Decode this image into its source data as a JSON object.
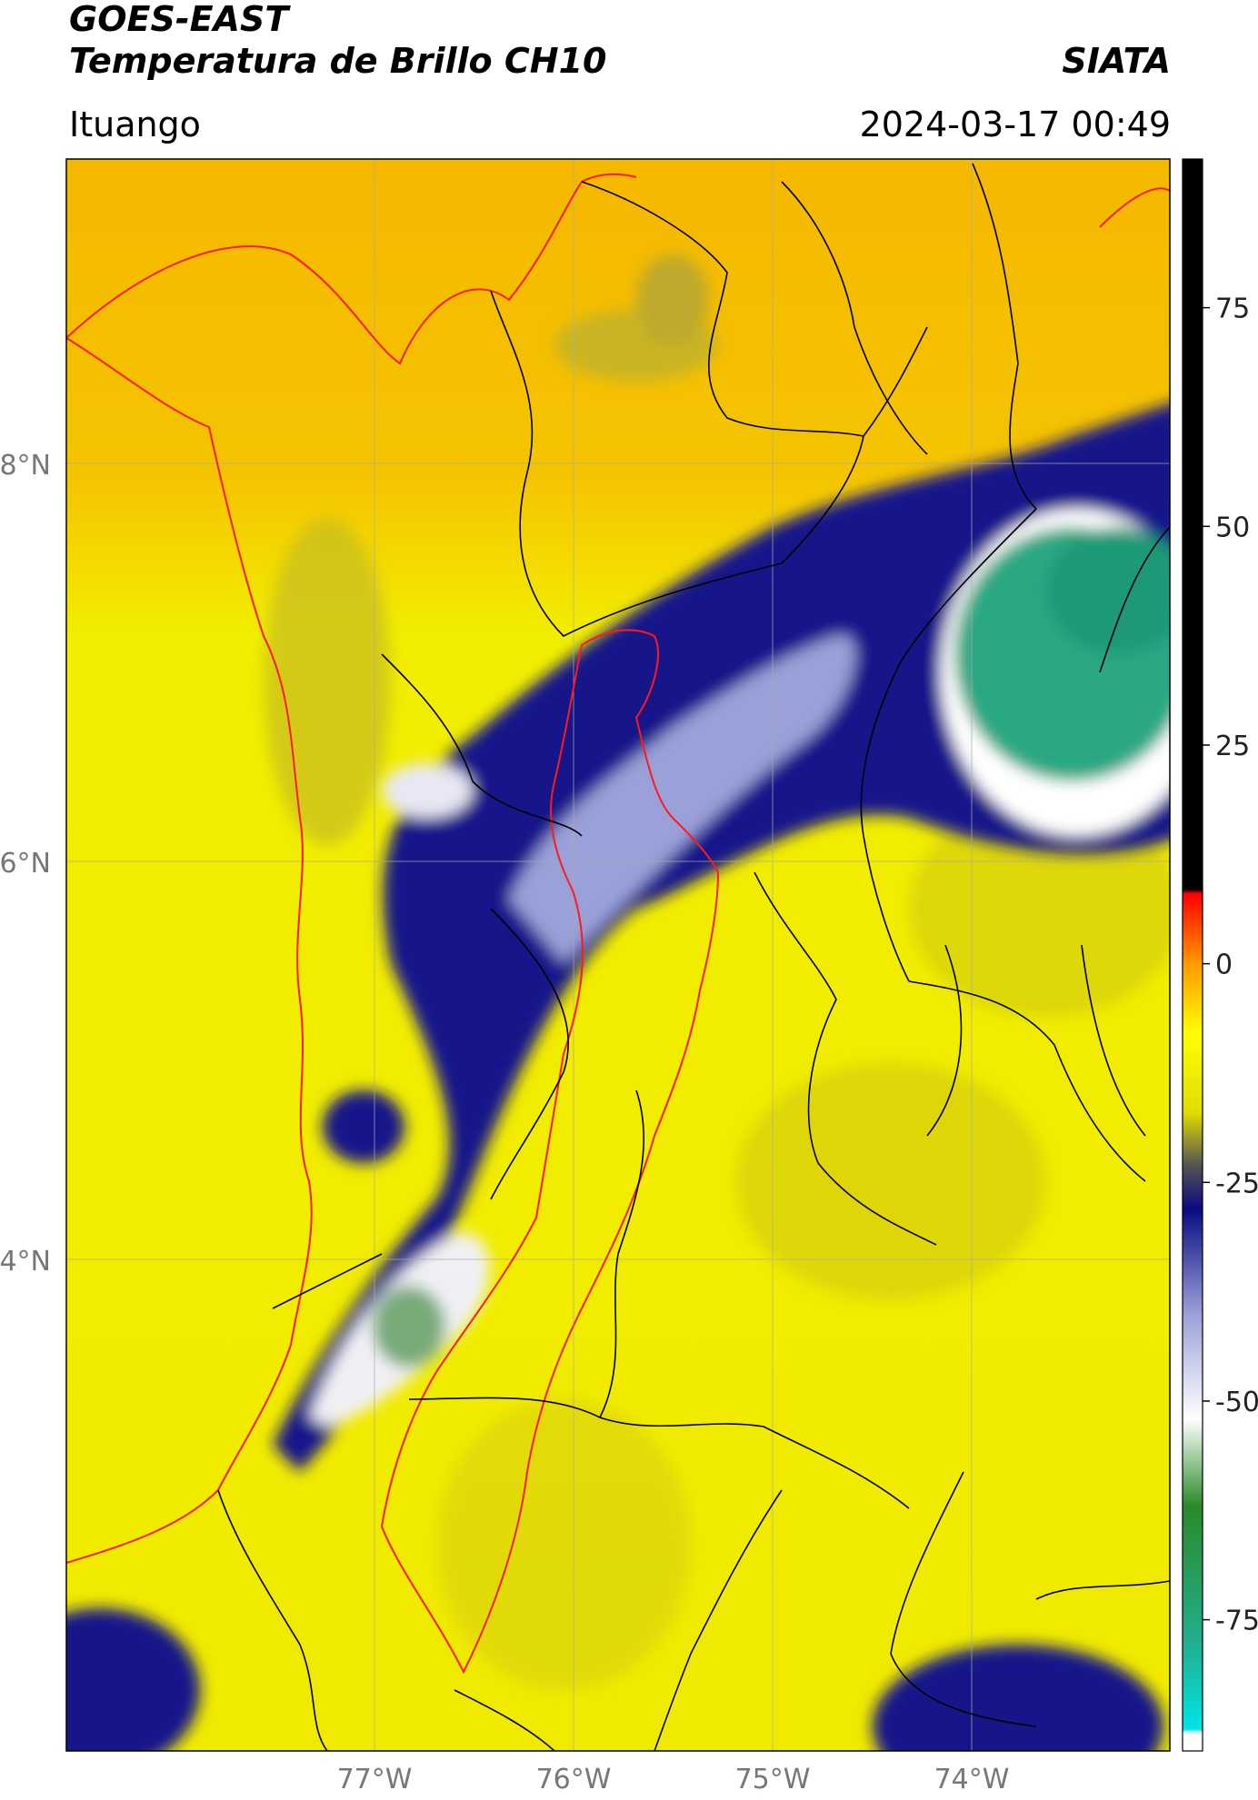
{
  "header": {
    "satellite": "GOES-EAST",
    "product": "Temperatura de Brillo CH10",
    "source": "SIATA",
    "region": "Ituango",
    "timestamp": "2024-03-17 00:49"
  },
  "map": {
    "lat_labels": [
      "8°N",
      "6°N",
      "4°N"
    ],
    "lon_labels": [
      "77°W",
      "76°W",
      "75°W",
      "74°W"
    ],
    "lat_values": [
      8,
      6,
      4
    ],
    "lon_values": [
      -77,
      -76,
      -75,
      -74
    ],
    "extent": {
      "lon_min": -78.55,
      "lon_max": -73.0,
      "lat_min": 2.55,
      "lat_max": 9.55
    },
    "colors": {
      "warm_orange": "#f5b800",
      "yellow": "#f2ee00",
      "olive": "#b8b030",
      "navy": "#1a1a8a",
      "lavender": "#b8bce0",
      "white_cloud": "#f5f5f5",
      "green_cloud": "#2aa883",
      "boundary_red": "#ff1a1a",
      "boundary_black": "#000000"
    }
  },
  "colorbar": {
    "ticks": [
      "75",
      "50",
      "25",
      "0",
      "-25",
      "-50",
      "-75"
    ],
    "tick_values": [
      75,
      50,
      25,
      0,
      -25,
      -50,
      -75
    ],
    "range": [
      -90,
      92
    ],
    "stops": [
      {
        "v": -90,
        "c": "#ffffff"
      },
      {
        "v": -88,
        "c": "#ffffff"
      },
      {
        "v": -87.5,
        "c": "#00e5e5"
      },
      {
        "v": -78,
        "c": "#22b090"
      },
      {
        "v": -62,
        "c": "#2a8a2a"
      },
      {
        "v": -52,
        "c": "#ffffff"
      },
      {
        "v": -40,
        "c": "#9aa0d8"
      },
      {
        "v": -28,
        "c": "#0a0a80"
      },
      {
        "v": -23,
        "c": "#555555"
      },
      {
        "v": -17,
        "c": "#e0dc00"
      },
      {
        "v": -8,
        "c": "#ffff00"
      },
      {
        "v": 0,
        "c": "#ff9900"
      },
      {
        "v": 8,
        "c": "#ff0000"
      },
      {
        "v": 8.5,
        "c": "#000000"
      },
      {
        "v": 92,
        "c": "#000000"
      }
    ]
  }
}
